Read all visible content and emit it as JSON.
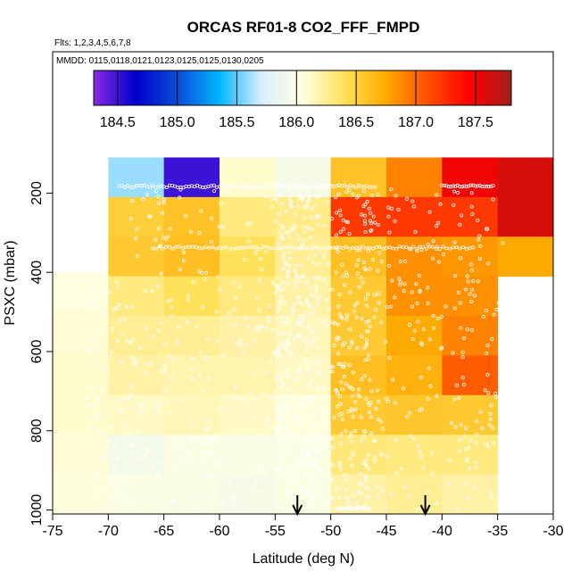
{
  "chart_data": {
    "type": "heatmap",
    "title": "ORCAS RF01-8 CO2_FFF_FMPD",
    "flights_label": "Flts: 1,2,3,4,5,6,7,8",
    "dates_label": "MMDD: 0115,0118,0121,0123,0125,0125,0130,0205",
    "xlabel": "Latitude (deg N)",
    "ylabel": "PSXC (mbar)",
    "xlim": [
      -75,
      -30
    ],
    "ylim": [
      1010,
      100
    ],
    "x_ticks": [
      -75,
      -70,
      -65,
      -60,
      -55,
      -50,
      -45,
      -40,
      -35,
      -30
    ],
    "y_ticks": [
      200,
      400,
      600,
      800,
      1000
    ],
    "colorbar": {
      "min": 184.3,
      "max": 187.8,
      "ticks": [
        184.5,
        185.0,
        185.5,
        186.0,
        186.5,
        187.0,
        187.5
      ],
      "tick_labels": [
        "184.5",
        "185.0",
        "185.5",
        "186.0",
        "186.5",
        "187.0",
        "187.5"
      ],
      "colors": [
        "#8a2be2",
        "#0000cd",
        "#0a4cd8",
        "#00b4ff",
        "#d8eeff",
        "#ffffe0",
        "#ffe15a",
        "#ffaa00",
        "#ff5000",
        "#ff0000",
        "#a0201a"
      ]
    },
    "lat_bins": [
      -75,
      -70,
      -65,
      -60,
      -55,
      -50,
      -45,
      -40,
      -35,
      -30
    ],
    "pressure_bins": [
      100,
      200,
      300,
      400,
      500,
      600,
      700,
      800,
      900,
      1000
    ],
    "columns": [
      {
        "x0": -75,
        "x1": -70,
        "cells": [
          [
            400,
            500,
            186.05
          ],
          [
            500,
            600,
            186.08
          ],
          [
            600,
            700,
            186.1
          ],
          [
            700,
            800,
            186.1
          ],
          [
            800,
            900,
            186.08
          ],
          [
            900,
            1000,
            186.06
          ],
          [
            1000,
            1010,
            186.06
          ]
        ]
      },
      {
        "x0": -70,
        "x1": -65,
        "cells": [
          [
            110,
            210,
            185.6
          ],
          [
            210,
            310,
            186.52
          ],
          [
            310,
            410,
            186.55
          ],
          [
            410,
            510,
            186.3
          ],
          [
            510,
            610,
            186.25
          ],
          [
            610,
            710,
            186.2
          ],
          [
            710,
            810,
            186.12
          ],
          [
            810,
            910,
            185.95
          ],
          [
            910,
            1010,
            186.02
          ]
        ]
      },
      {
        "x0": -65,
        "x1": -60,
        "cells": [
          [
            110,
            210,
            184.5
          ],
          [
            210,
            310,
            186.6
          ],
          [
            310,
            410,
            186.62
          ],
          [
            410,
            510,
            186.4
          ],
          [
            510,
            610,
            186.25
          ],
          [
            610,
            710,
            186.18
          ],
          [
            710,
            810,
            186.15
          ],
          [
            810,
            910,
            186.02
          ],
          [
            910,
            1010,
            186.0
          ]
        ]
      },
      {
        "x0": -60,
        "x1": -55,
        "cells": [
          [
            110,
            210,
            186.1
          ],
          [
            210,
            310,
            186.3
          ],
          [
            310,
            410,
            186.4
          ],
          [
            410,
            510,
            186.3
          ],
          [
            510,
            610,
            186.2
          ],
          [
            610,
            710,
            186.18
          ],
          [
            710,
            810,
            186.12
          ],
          [
            810,
            910,
            186.0
          ],
          [
            910,
            1010,
            185.97
          ]
        ]
      },
      {
        "x0": -55,
        "x1": -50,
        "cells": [
          [
            110,
            210,
            185.97
          ],
          [
            210,
            310,
            186.28
          ],
          [
            310,
            410,
            186.25
          ],
          [
            410,
            510,
            186.2
          ],
          [
            510,
            610,
            186.15
          ],
          [
            610,
            710,
            186.12
          ],
          [
            710,
            810,
            186.06
          ],
          [
            810,
            910,
            186.02
          ],
          [
            910,
            1010,
            186.02
          ]
        ]
      },
      {
        "x0": -50,
        "x1": -45,
        "cells": [
          [
            110,
            210,
            186.6
          ],
          [
            210,
            310,
            187.2
          ],
          [
            310,
            410,
            186.62
          ],
          [
            410,
            510,
            186.55
          ],
          [
            510,
            610,
            186.55
          ],
          [
            610,
            710,
            186.62
          ],
          [
            710,
            810,
            186.55
          ],
          [
            810,
            910,
            186.32
          ],
          [
            910,
            1010,
            186.2
          ]
        ]
      },
      {
        "x0": -45,
        "x1": -40,
        "cells": [
          [
            110,
            210,
            186.9
          ],
          [
            210,
            310,
            187.2
          ],
          [
            310,
            410,
            186.85
          ],
          [
            410,
            510,
            186.85
          ],
          [
            510,
            610,
            186.75
          ],
          [
            610,
            710,
            186.7
          ],
          [
            710,
            810,
            186.58
          ],
          [
            810,
            910,
            186.3
          ],
          [
            910,
            1010,
            186.25
          ]
        ]
      },
      {
        "x0": -40,
        "x1": -35,
        "cells": [
          [
            110,
            210,
            187.5
          ],
          [
            210,
            310,
            187.2
          ],
          [
            310,
            410,
            186.82
          ],
          [
            410,
            510,
            186.85
          ],
          [
            510,
            610,
            186.9
          ],
          [
            610,
            710,
            187.05
          ],
          [
            710,
            810,
            186.55
          ],
          [
            810,
            910,
            186.3
          ],
          [
            910,
            1010,
            186.2
          ]
        ]
      },
      {
        "x0": -35,
        "x1": -30,
        "cells": [
          [
            110,
            310,
            187.6
          ],
          [
            310,
            410,
            186.75
          ]
        ]
      }
    ],
    "arrows_lat": [
      -53,
      -41.5
    ]
  }
}
